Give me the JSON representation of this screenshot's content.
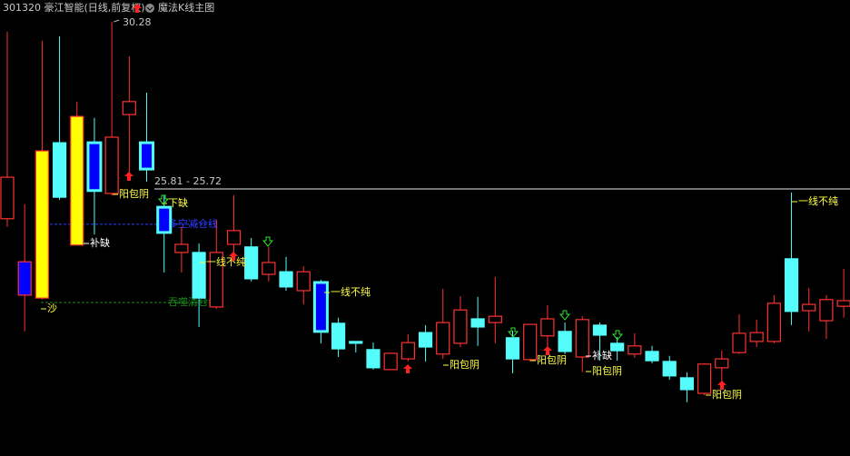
{
  "header": {
    "symbol": "301320 豪江智能(日线,前复权)",
    "indicator": "魔法K线主图"
  },
  "chart_data": {
    "type": "candlestick",
    "open": [
      24.97,
      22.91,
      22.83,
      27.02,
      24.26,
      27.02,
      25.65,
      27.78,
      27.02,
      25.28,
      24.06,
      24.06,
      22.59,
      24.28,
      24.21,
      23.47,
      23.54,
      23.03,
      23.25,
      22.15,
      21.66,
      21.44,
      20.9,
      21.19,
      21.9,
      21.32,
      21.61,
      22.27,
      22.17,
      21.76,
      21.17,
      21.81,
      21.93,
      21.24,
      22.1,
      21.61,
      21.32,
      21.39,
      21.12,
      20.68,
      20.26,
      20.95,
      21.36,
      21.66,
      21.66,
      23.89,
      22.49,
      22.22,
      22.61
    ],
    "high": [
      30.01,
      25.36,
      29.77,
      29.89,
      28.13,
      27.69,
      30.28,
      29.35,
      28.37,
      25.6,
      24.75,
      24.3,
      24.94,
      25.6,
      24.45,
      24.21,
      23.94,
      23.69,
      23.32,
      22.3,
      21.66,
      21.63,
      21.36,
      21.85,
      22.1,
      23.08,
      22.88,
      22.86,
      23.4,
      21.95,
      22.12,
      22.64,
      22.17,
      22.34,
      22.17,
      21.78,
      21.88,
      21.54,
      21.27,
      20.83,
      21.07,
      21.41,
      22.39,
      22.25,
      22.91,
      25.68,
      23.1,
      22.91,
      23.62
    ],
    "low": [
      24.75,
      21.93,
      22.79,
      25.48,
      24.26,
      24.55,
      25.6,
      26.22,
      25.97,
      23.52,
      23.52,
      22.05,
      22.54,
      24.01,
      23.28,
      23.28,
      23.03,
      22.66,
      21.61,
      21.24,
      21.36,
      20.9,
      20.9,
      21.12,
      21.12,
      21.19,
      21.51,
      21.54,
      21.61,
      20.8,
      21.12,
      21.51,
      21.32,
      20.83,
      21.14,
      21.14,
      21.22,
      21.07,
      20.63,
      20.02,
      20.21,
      20.58,
      21.32,
      21.51,
      21.61,
      22.1,
      21.93,
      21.73,
      22.3
    ],
    "close": [
      26.09,
      23.81,
      26.8,
      25.55,
      27.73,
      25.73,
      27.17,
      28.13,
      26.31,
      24.6,
      24.28,
      22.83,
      24.06,
      24.65,
      23.35,
      23.79,
      23.13,
      23.54,
      21.93,
      21.46,
      21.61,
      20.95,
      21.34,
      21.63,
      21.51,
      22.17,
      22.51,
      22.05,
      22.34,
      21.19,
      22.12,
      22.27,
      21.39,
      22.25,
      21.83,
      21.41,
      21.54,
      21.14,
      20.73,
      20.36,
      21.05,
      21.19,
      21.88,
      21.9,
      22.69,
      22.47,
      22.66,
      22.79,
      22.76
    ],
    "fill": [
      "#000000",
      "#0000ff",
      "#ffff00",
      "#54fcfc",
      "#ffff00",
      "#0000ff",
      "#000000",
      "#000000",
      "#0000ff",
      "#0000ff",
      "#000000",
      "#54fcfc",
      "#000000",
      "#000000",
      "#54fcfc",
      "#000000",
      "#54fcfc",
      "#000000",
      "#0000ff",
      "#54fcfc",
      "#54fcfc",
      "#54fcfc",
      "#000000",
      "#000000",
      "#54fcfc",
      "#000000",
      "#000000",
      "#54fcfc",
      "#000000",
      "#54fcfc",
      "#000000",
      "#000000",
      "#54fcfc",
      "#000000",
      "#54fcfc",
      "#54fcfc",
      "#000000",
      "#54fcfc",
      "#54fcfc",
      "#54fcfc",
      "#000000",
      "#000000",
      "#000000",
      "#000000",
      "#000000",
      "#54fcfc",
      "#000000",
      "#000000",
      "#000000"
    ],
    "up_color": "#ff3232",
    "down_color": "#54fcfc",
    "ylim": [
      18.57,
      30.87
    ],
    "high_label": 30.28,
    "range_label": "25.81 - 25.72",
    "levels": [
      {
        "label": "多空减仓线",
        "value": 24.82,
        "color": "#2a3cff"
      },
      {
        "label": "吞噬清仓线",
        "value": 22.71,
        "color": "#1e8c1e"
      }
    ],
    "annotations": [
      "阳包阴",
      "补缺",
      "下缺",
      "一线不纯",
      "沙",
      "一线不纯",
      "阳包阴",
      "阳包阴",
      "补缺",
      "阳包阴",
      "阳包阴",
      "一线不纯"
    ]
  }
}
